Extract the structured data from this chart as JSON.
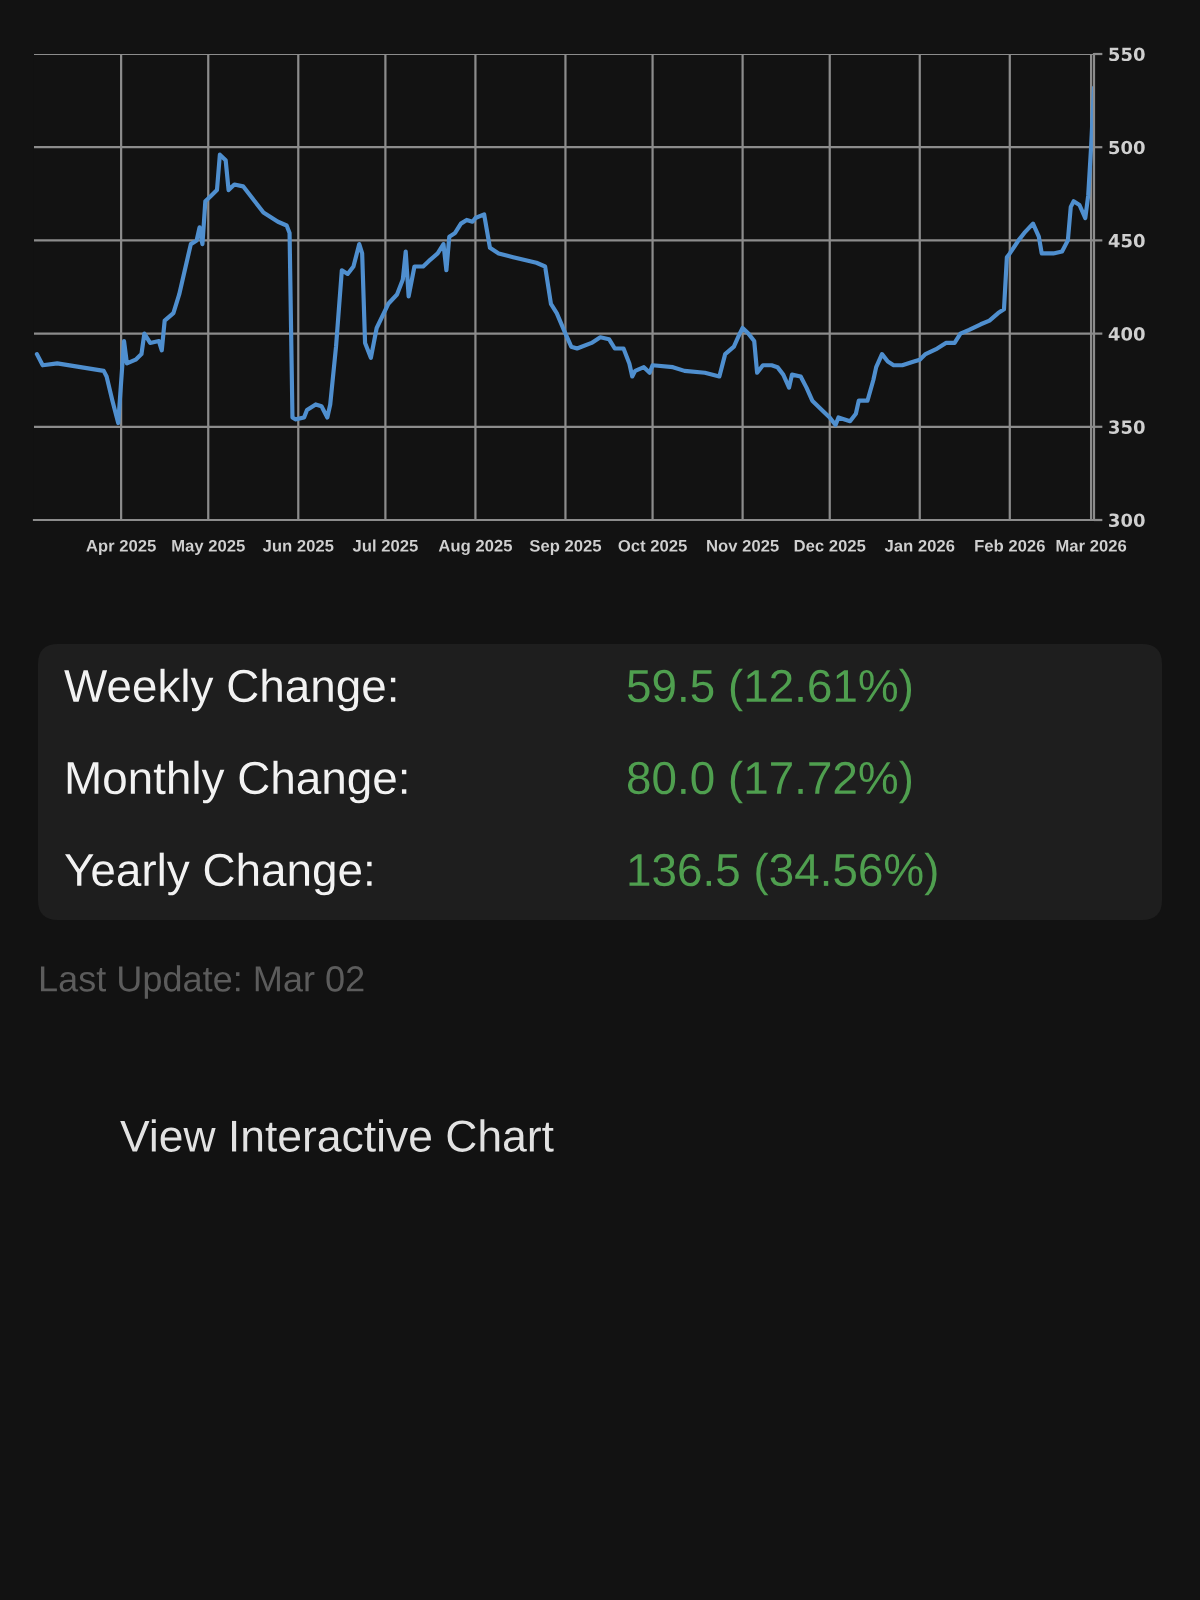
{
  "chart_data": [
    {
      "type": "line",
      "x": [
        "2025-03-03",
        "2025-03-05",
        "2025-03-10",
        "2025-03-26",
        "2025-03-27",
        "2025-03-29",
        "2025-03-31",
        "2025-04-02",
        "2025-04-03",
        "2025-04-06",
        "2025-04-08",
        "2025-04-09",
        "2025-04-11",
        "2025-04-14",
        "2025-04-15",
        "2025-04-16",
        "2025-04-19",
        "2025-04-21",
        "2025-04-25",
        "2025-04-27",
        "2025-04-28",
        "2025-04-29",
        "2025-04-30",
        "2025-05-02",
        "2025-05-04",
        "2025-05-05",
        "2025-05-07",
        "2025-05-08",
        "2025-05-10",
        "2025-05-13",
        "2025-05-17",
        "2025-05-20",
        "2025-05-25",
        "2025-05-28",
        "2025-05-29",
        "2025-05-30",
        "2025-05-31",
        "2025-06-03",
        "2025-06-04",
        "2025-06-07",
        "2025-06-09",
        "2025-06-11",
        "2025-06-12",
        "2025-06-14",
        "2025-06-16",
        "2025-06-18",
        "2025-06-20",
        "2025-06-22",
        "2025-06-23",
        "2025-06-24",
        "2025-06-26",
        "2025-06-28",
        "2025-07-02",
        "2025-07-05",
        "2025-07-07",
        "2025-07-08",
        "2025-07-09",
        "2025-07-11",
        "2025-07-14",
        "2025-07-16",
        "2025-07-19",
        "2025-07-21",
        "2025-07-22",
        "2025-07-23",
        "2025-07-25",
        "2025-07-27",
        "2025-07-29",
        "2025-07-31",
        "2025-08-01",
        "2025-08-04",
        "2025-08-05",
        "2025-08-06",
        "2025-08-09",
        "2025-08-14",
        "2025-08-22",
        "2025-08-25",
        "2025-08-27",
        "2025-08-29",
        "2025-09-01",
        "2025-09-03",
        "2025-09-05",
        "2025-09-10",
        "2025-09-13",
        "2025-09-16",
        "2025-09-18",
        "2025-09-21",
        "2025-09-23",
        "2025-09-24",
        "2025-09-25",
        "2025-09-28",
        "2025-09-30",
        "2025-10-01",
        "2025-10-08",
        "2025-10-12",
        "2025-10-19",
        "2025-10-24",
        "2025-10-26",
        "2025-10-29",
        "2025-10-31",
        "2025-11-01",
        "2025-11-03",
        "2025-11-05",
        "2025-11-06",
        "2025-11-08",
        "2025-11-11",
        "2025-11-13",
        "2025-11-15",
        "2025-11-17",
        "2025-11-18",
        "2025-11-21",
        "2025-11-23",
        "2025-11-25",
        "2025-11-29",
        "2025-12-01",
        "2025-12-03",
        "2025-12-04",
        "2025-12-08",
        "2025-12-10",
        "2025-12-11",
        "2025-12-14",
        "2025-12-16",
        "2025-12-17",
        "2025-12-19",
        "2025-12-21",
        "2025-12-23",
        "2025-12-26",
        "2025-12-30",
        "2026-01-01",
        "2026-01-03",
        "2026-01-07",
        "2026-01-10",
        "2026-01-13",
        "2026-01-15",
        "2026-01-18",
        "2026-01-22",
        "2026-01-25",
        "2026-01-28",
        "2026-01-30",
        "2026-01-31",
        "2026-02-01",
        "2026-02-04",
        "2026-02-06",
        "2026-02-09",
        "2026-02-11",
        "2026-02-12",
        "2026-02-16",
        "2026-02-19",
        "2026-02-21",
        "2026-02-22",
        "2026-02-23",
        "2026-02-25",
        "2026-02-27",
        "2026-02-28",
        "2026-03-01",
        "2026-03-02"
      ],
      "series": [
        {
          "color": "#4f8fcf",
          "values": [
            389,
            383,
            384,
            380,
            377,
            364,
            352,
            396,
            384,
            386,
            389,
            400,
            395,
            396,
            391,
            407,
            411,
            421,
            448,
            450,
            457,
            448,
            471,
            474,
            477,
            496,
            493,
            477,
            480,
            479,
            471,
            465,
            460,
            458,
            454,
            355,
            354,
            355,
            359,
            362,
            361,
            355,
            362,
            393,
            434,
            432,
            436,
            448,
            443,
            395,
            387,
            403,
            416,
            421,
            429,
            444,
            420,
            436,
            436,
            439,
            443,
            448,
            434,
            452,
            454,
            459,
            461,
            460,
            462,
            464,
            455,
            446,
            443,
            441,
            438,
            436,
            416,
            411,
            400,
            393,
            392,
            395,
            398,
            397,
            392,
            392,
            384,
            377,
            380,
            382,
            379,
            383,
            382,
            380,
            379,
            377,
            389,
            393,
            400,
            403,
            400,
            396,
            379,
            383,
            383,
            382,
            378,
            371,
            378,
            377,
            371,
            364,
            358,
            355,
            351,
            355,
            353,
            357,
            364,
            364,
            375,
            382,
            389,
            385,
            383,
            383,
            385,
            386,
            389,
            392,
            395,
            395,
            400,
            402,
            405,
            407,
            411,
            413,
            441,
            443,
            450,
            454,
            459,
            452,
            443,
            443,
            444,
            450,
            468,
            471,
            469,
            462,
            474,
            500,
            532
          ]
        }
      ],
      "xlim": [
        "2025-03-02",
        "2026-03-02"
      ],
      "xticks": [
        {
          "value": "2025-04-01",
          "label": "Apr 2025"
        },
        {
          "value": "2025-05-01",
          "label": "May 2025"
        },
        {
          "value": "2025-06-01",
          "label": "Jun 2025"
        },
        {
          "value": "2025-07-01",
          "label": "Jul 2025"
        },
        {
          "value": "2025-08-01",
          "label": "Aug 2025"
        },
        {
          "value": "2025-09-01",
          "label": "Sep 2025"
        },
        {
          "value": "2025-10-01",
          "label": "Oct 2025"
        },
        {
          "value": "2025-11-01",
          "label": "Nov 2025"
        },
        {
          "value": "2025-12-01",
          "label": "Dec 2025"
        },
        {
          "value": "2026-01-01",
          "label": "Jan 2026"
        },
        {
          "value": "2026-02-01",
          "label": "Feb 2026"
        },
        {
          "value": "2026-03-01",
          "label": "Mar 2026"
        }
      ],
      "ylim": [
        300,
        550
      ],
      "yticks": [
        300,
        350,
        400,
        450,
        500,
        550
      ],
      "grid": true,
      "annotations": [
        "Last Update: Mar 02",
        "View Interactive Chart"
      ]
    },
    {
      "type": "other",
      "annotations": [
        "Weekly Change:",
        "59.5 (12.61%)",
        "Monthly Change:",
        "80.0 (17.72%)",
        "Yearly Change:",
        "136.5 (34.56%)"
      ]
    }
  ]
}
